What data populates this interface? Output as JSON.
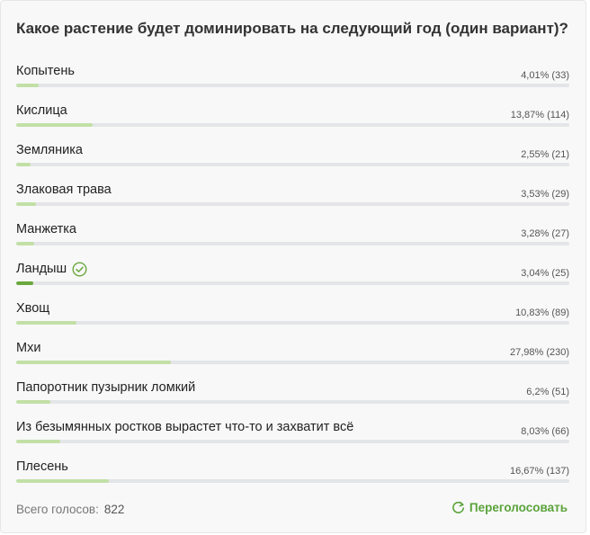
{
  "poll": {
    "title": "Какое растение будет доминировать на следующий год (один вариант)?",
    "options": [
      {
        "label": "Копытень",
        "stat": "4,01% (33)",
        "percent": 4.01,
        "selected": false
      },
      {
        "label": "Кислица",
        "stat": "13,87% (114)",
        "percent": 13.87,
        "selected": false
      },
      {
        "label": "Земляника",
        "stat": "2,55% (21)",
        "percent": 2.55,
        "selected": false
      },
      {
        "label": "Злаковая трава",
        "stat": "3,53% (29)",
        "percent": 3.53,
        "selected": false
      },
      {
        "label": "Манжетка",
        "stat": "3,28% (27)",
        "percent": 3.28,
        "selected": false
      },
      {
        "label": "Ландыш",
        "stat": "3,04% (25)",
        "percent": 3.04,
        "selected": true
      },
      {
        "label": "Хвощ",
        "stat": "10,83% (89)",
        "percent": 10.83,
        "selected": false
      },
      {
        "label": "Мхи",
        "stat": "27,98% (230)",
        "percent": 27.98,
        "selected": false
      },
      {
        "label": "Папоротник пузырник ломкий",
        "stat": "6,2% (51)",
        "percent": 6.2,
        "selected": false
      },
      {
        "label": "Из безымянных ростков вырастет что-то и захватит всё",
        "stat": "8,03% (66)",
        "percent": 8.03,
        "selected": false
      },
      {
        "label": "Плесень",
        "stat": "16,67% (137)",
        "percent": 16.67,
        "selected": false
      }
    ],
    "footer": {
      "total_label": "Всего голосов:",
      "total_count": "822",
      "revote_label": "Переголосовать"
    },
    "icons": {
      "selected": "check-circle-icon",
      "revote": "refresh-icon"
    },
    "colors": {
      "bar_fill": "#c2e0a6",
      "bar_fill_selected": "#6aa83e",
      "bar_track": "#e4e5e8",
      "accent": "#5ba33b"
    }
  }
}
